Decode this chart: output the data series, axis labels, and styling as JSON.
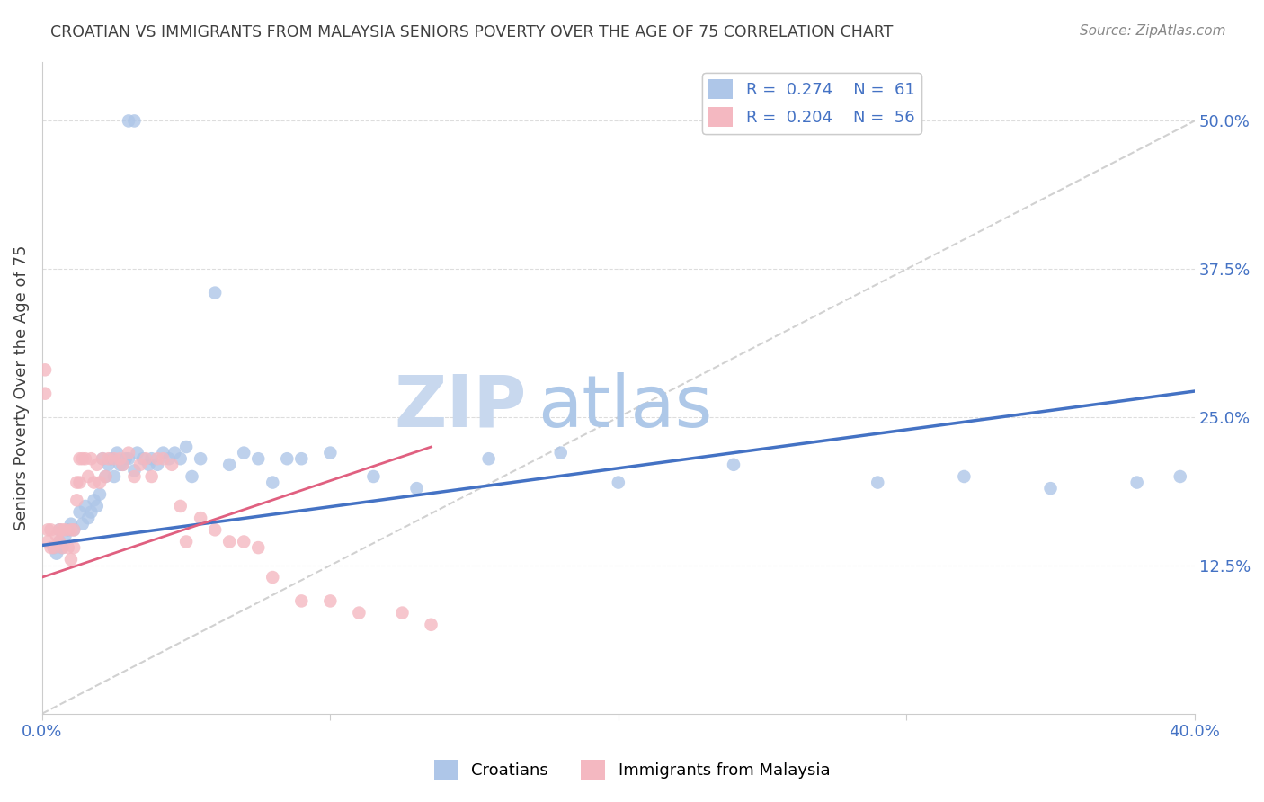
{
  "title": "CROATIAN VS IMMIGRANTS FROM MALAYSIA SENIORS POVERTY OVER THE AGE OF 75 CORRELATION CHART",
  "source": "Source: ZipAtlas.com",
  "ylabel": "Seniors Poverty Over the Age of 75",
  "xlabel": "",
  "xlim": [
    0.0,
    0.4
  ],
  "ylim": [
    0.0,
    0.55
  ],
  "xticks": [
    0.0,
    0.1,
    0.2,
    0.3,
    0.4
  ],
  "xtick_labels": [
    "0.0%",
    "",
    "",
    "",
    "40.0%"
  ],
  "yticks_right": [
    0.125,
    0.25,
    0.375,
    0.5
  ],
  "ytick_labels_right": [
    "12.5%",
    "25.0%",
    "37.5%",
    "50.0%"
  ],
  "legend_entries": [
    {
      "label": "R =  0.274    N =  61",
      "color": "#aec6e8"
    },
    {
      "label": "R =  0.204    N =  56",
      "color": "#f4b8c1"
    }
  ],
  "legend_bottom": [
    "Croatians",
    "Immigrants from Malaysia"
  ],
  "legend_bottom_colors": [
    "#aec6e8",
    "#f4b8c1"
  ],
  "watermark": "ZIPatlas",
  "watermark_color": "#d0dff0",
  "croatians_R": 0.274,
  "malaysia_R": 0.204,
  "croatians_N": 61,
  "malaysia_N": 56,
  "croatian_color": "#aec6e8",
  "malaysia_color": "#f4b8c1",
  "blue_line_color": "#4472c4",
  "pink_line_color": "#e06080",
  "diag_line_color": "#cccccc",
  "background_color": "#ffffff",
  "grid_color": "#dddddd",
  "title_color": "#404040",
  "axis_label_color": "#404040",
  "tick_color": "#4472c4",
  "blue_line_x": [
    0.0,
    0.4
  ],
  "blue_line_y": [
    0.142,
    0.272
  ],
  "pink_line_x": [
    0.0,
    0.135
  ],
  "pink_line_y": [
    0.115,
    0.225
  ],
  "diag_line_x": [
    0.0,
    0.4
  ],
  "diag_line_y": [
    0.0,
    0.5
  ],
  "croatians_x": [
    0.03,
    0.032,
    0.006,
    0.004,
    0.005,
    0.006,
    0.007,
    0.008,
    0.009,
    0.01,
    0.011,
    0.013,
    0.014,
    0.015,
    0.016,
    0.017,
    0.018,
    0.019,
    0.02,
    0.021,
    0.022,
    0.023,
    0.024,
    0.025,
    0.026,
    0.027,
    0.028,
    0.029,
    0.03,
    0.032,
    0.033,
    0.035,
    0.037,
    0.038,
    0.04,
    0.042,
    0.044,
    0.046,
    0.048,
    0.05,
    0.052,
    0.055,
    0.06,
    0.065,
    0.07,
    0.075,
    0.08,
    0.085,
    0.09,
    0.1,
    0.115,
    0.13,
    0.155,
    0.18,
    0.2,
    0.24,
    0.29,
    0.32,
    0.35,
    0.38,
    0.395
  ],
  "croatians_y": [
    0.5,
    0.5,
    0.145,
    0.14,
    0.135,
    0.155,
    0.14,
    0.15,
    0.155,
    0.16,
    0.155,
    0.17,
    0.16,
    0.175,
    0.165,
    0.17,
    0.18,
    0.175,
    0.185,
    0.215,
    0.2,
    0.21,
    0.215,
    0.2,
    0.22,
    0.21,
    0.21,
    0.215,
    0.215,
    0.205,
    0.22,
    0.215,
    0.21,
    0.215,
    0.21,
    0.22,
    0.215,
    0.22,
    0.215,
    0.225,
    0.2,
    0.215,
    0.355,
    0.21,
    0.22,
    0.215,
    0.195,
    0.215,
    0.215,
    0.22,
    0.2,
    0.19,
    0.215,
    0.22,
    0.195,
    0.21,
    0.195,
    0.2,
    0.19,
    0.195,
    0.2
  ],
  "malaysia_x": [
    0.001,
    0.001,
    0.002,
    0.002,
    0.003,
    0.003,
    0.004,
    0.005,
    0.006,
    0.006,
    0.007,
    0.007,
    0.008,
    0.009,
    0.01,
    0.01,
    0.011,
    0.011,
    0.012,
    0.012,
    0.013,
    0.013,
    0.014,
    0.015,
    0.016,
    0.017,
    0.018,
    0.019,
    0.02,
    0.021,
    0.022,
    0.023,
    0.025,
    0.027,
    0.028,
    0.03,
    0.032,
    0.034,
    0.036,
    0.038,
    0.04,
    0.042,
    0.045,
    0.048,
    0.05,
    0.055,
    0.06,
    0.065,
    0.07,
    0.075,
    0.08,
    0.09,
    0.1,
    0.11,
    0.125,
    0.135
  ],
  "malaysia_y": [
    0.27,
    0.29,
    0.155,
    0.145,
    0.14,
    0.155,
    0.14,
    0.15,
    0.155,
    0.145,
    0.155,
    0.14,
    0.155,
    0.14,
    0.155,
    0.13,
    0.155,
    0.14,
    0.195,
    0.18,
    0.215,
    0.195,
    0.215,
    0.215,
    0.2,
    0.215,
    0.195,
    0.21,
    0.195,
    0.215,
    0.2,
    0.215,
    0.215,
    0.215,
    0.21,
    0.22,
    0.2,
    0.21,
    0.215,
    0.2,
    0.215,
    0.215,
    0.21,
    0.175,
    0.145,
    0.165,
    0.155,
    0.145,
    0.145,
    0.14,
    0.115,
    0.095,
    0.095,
    0.085,
    0.085,
    0.075
  ]
}
